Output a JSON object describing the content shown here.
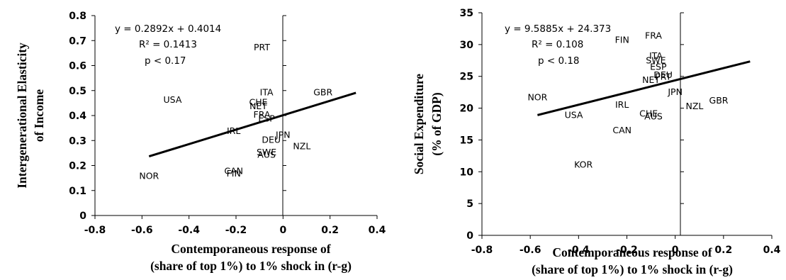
{
  "chart_data": [
    {
      "type": "scatter",
      "ylabel": [
        "Intergenerational Elasticity",
        "of Income"
      ],
      "xlabel": [
        "Contemporaneous response of",
        "(share of top 1%) to 1% shock in (r-g)"
      ],
      "xlim": [
        -0.8,
        0.4
      ],
      "ylim": [
        0,
        0.8
      ],
      "xticks": [
        "-0.8",
        "-0.6",
        "-0.4",
        "-0.2",
        "0",
        "0.2",
        "0.4"
      ],
      "yticks": [
        "0",
        "0.1",
        "0.2",
        "0.3",
        "0.4",
        "0.5",
        "0.6",
        "0.7",
        "0.8"
      ],
      "annotation": [
        "y = 0.2892x + 0.4014",
        "R² = 0.1413",
        "p < 0.17"
      ],
      "trendline": {
        "slope": 0.2892,
        "intercept": 0.4014,
        "x_from": -0.57,
        "x_to": 0.31
      },
      "points": [
        {
          "label": "USA",
          "x": -0.47,
          "y": 0.465
        },
        {
          "label": "NOR",
          "x": -0.57,
          "y": 0.16
        },
        {
          "label": "PRT",
          "x": -0.09,
          "y": 0.675
        },
        {
          "label": "ITA",
          "x": -0.07,
          "y": 0.495
        },
        {
          "label": "GBR",
          "x": 0.17,
          "y": 0.495
        },
        {
          "label": "CHE",
          "x": -0.105,
          "y": 0.455
        },
        {
          "label": "NET",
          "x": -0.105,
          "y": 0.44
        },
        {
          "label": "FRA",
          "x": -0.09,
          "y": 0.405
        },
        {
          "label": "ESP",
          "x": -0.07,
          "y": 0.39
        },
        {
          "label": "IRL",
          "x": -0.21,
          "y": 0.34
        },
        {
          "label": "JPN",
          "x": 0.0,
          "y": 0.325
        },
        {
          "label": "DEU",
          "x": -0.05,
          "y": 0.305
        },
        {
          "label": "NZL",
          "x": 0.08,
          "y": 0.28
        },
        {
          "label": "SWE",
          "x": -0.07,
          "y": 0.255
        },
        {
          "label": "AUS",
          "x": -0.07,
          "y": 0.245
        },
        {
          "label": "CAN",
          "x": -0.21,
          "y": 0.18
        },
        {
          "label": "FIN",
          "x": -0.21,
          "y": 0.17
        }
      ]
    },
    {
      "type": "scatter",
      "ylabel": [
        "Social Expenditure",
        "(% of GDP)"
      ],
      "xlabel": [
        "Contemporaneous response of",
        "(share of top 1%) to 1% shock in (r-g)"
      ],
      "xlim": [
        -0.8,
        0.4
      ],
      "ylim": [
        0,
        35
      ],
      "xticks": [
        "-0.8",
        "-0.6",
        "-0.4",
        "-0.2",
        "0",
        "0.2",
        "0.4"
      ],
      "yticks": [
        "0",
        "5",
        "10",
        "15",
        "20",
        "25",
        "30",
        "35"
      ],
      "annotation": [
        "y = 9.5885x + 24.373",
        "R² = 0.108",
        "p < 0.18"
      ],
      "trendline": {
        "slope": 9.5885,
        "intercept": 24.373,
        "x_from": -0.57,
        "x_to": 0.31
      },
      "points": [
        {
          "label": "FIN",
          "x": -0.22,
          "y": 30.8
        },
        {
          "label": "FRA",
          "x": -0.09,
          "y": 31.5
        },
        {
          "label": "ITA",
          "x": -0.08,
          "y": 28.3
        },
        {
          "label": "SWE",
          "x": -0.08,
          "y": 27.6
        },
        {
          "label": "ESP",
          "x": -0.07,
          "y": 26.6
        },
        {
          "label": "DEU",
          "x": -0.05,
          "y": 25.3
        },
        {
          "label": "PRT",
          "x": -0.05,
          "y": 25.0
        },
        {
          "label": "NET",
          "x": -0.1,
          "y": 24.5
        },
        {
          "label": "JPN",
          "x": 0.0,
          "y": 22.6
        },
        {
          "label": "NOR",
          "x": -0.57,
          "y": 21.8
        },
        {
          "label": "GBR",
          "x": 0.18,
          "y": 21.3
        },
        {
          "label": "NZL",
          "x": 0.08,
          "y": 20.4
        },
        {
          "label": "IRL",
          "x": -0.22,
          "y": 20.6
        },
        {
          "label": "CHE",
          "x": -0.11,
          "y": 19.2
        },
        {
          "label": "AUS",
          "x": -0.09,
          "y": 18.8
        },
        {
          "label": "USA",
          "x": -0.42,
          "y": 19.0
        },
        {
          "label": "CAN",
          "x": -0.22,
          "y": 16.6
        },
        {
          "label": "KOR",
          "x": -0.38,
          "y": 11.2
        }
      ]
    }
  ]
}
